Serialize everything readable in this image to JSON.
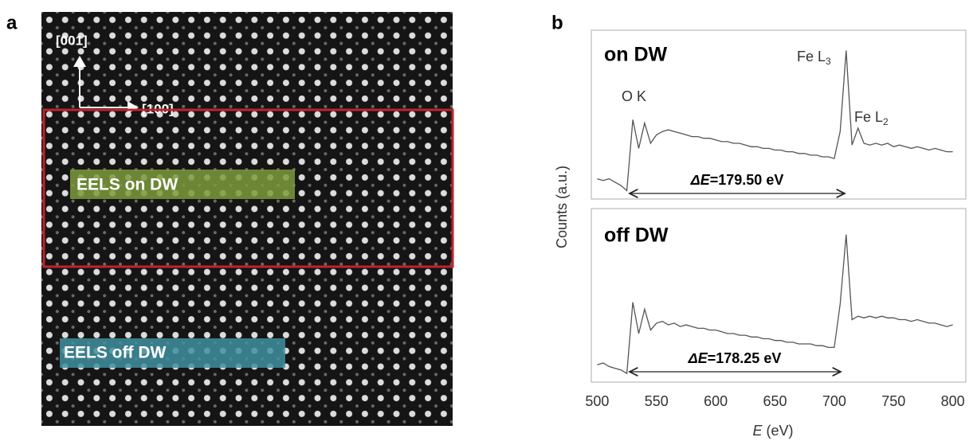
{
  "panel_a": {
    "label": "a",
    "axis_labels": [
      "[001]",
      "[100]"
    ],
    "regions": [
      "EELS on DW",
      "EELS off DW"
    ]
  },
  "panel_b": {
    "label": "b",
    "y_label": "Counts (a.u.)",
    "x_label": {
      "symbol": "E",
      "unit": "(eV)"
    }
  },
  "chart_data": [
    {
      "type": "line",
      "title": "on DW",
      "color": "#555555",
      "x": [
        500,
        505,
        510,
        515,
        520,
        525,
        530,
        535,
        540,
        545,
        550,
        555,
        560,
        565,
        570,
        575,
        580,
        585,
        590,
        595,
        600,
        605,
        610,
        615,
        620,
        625,
        630,
        635,
        640,
        645,
        650,
        655,
        660,
        665,
        670,
        675,
        680,
        685,
        690,
        695,
        700,
        705,
        710,
        715,
        720,
        725,
        730,
        735,
        740,
        745,
        750,
        755,
        760,
        765,
        770,
        775,
        780,
        785,
        790,
        795,
        800
      ],
      "values": [
        12,
        11,
        12,
        10,
        8,
        5,
        47,
        30,
        45,
        33,
        38,
        40,
        41,
        40,
        39,
        38,
        37,
        37,
        36,
        36,
        35,
        34,
        34,
        33,
        33,
        32,
        31,
        31,
        30,
        30,
        29,
        29,
        28,
        28,
        27,
        27,
        26,
        26,
        25,
        25,
        24,
        40,
        88,
        32,
        42,
        33,
        32,
        33,
        32,
        33,
        31,
        32,
        31,
        30,
        31,
        30,
        29,
        30,
        29,
        28,
        28
      ],
      "xlim": [
        495,
        811
      ],
      "ylim": [
        0,
        100
      ],
      "annotations": {
        "ok": "O K",
        "fe_l3": [
          "Fe L",
          "3"
        ],
        "fe_l2": [
          "Fe L",
          "2"
        ],
        "delta": [
          "ΔE",
          "=179.50 eV"
        ]
      }
    },
    {
      "type": "line",
      "title": "off DW",
      "color": "#555555",
      "x": [
        500,
        505,
        510,
        515,
        520,
        525,
        530,
        535,
        540,
        545,
        550,
        555,
        560,
        565,
        570,
        575,
        580,
        585,
        590,
        595,
        600,
        605,
        610,
        615,
        620,
        625,
        630,
        635,
        640,
        645,
        650,
        655,
        660,
        665,
        670,
        675,
        680,
        685,
        690,
        695,
        700,
        705,
        710,
        715,
        720,
        725,
        730,
        735,
        740,
        745,
        750,
        755,
        760,
        765,
        770,
        775,
        780,
        785,
        790,
        795,
        800
      ],
      "values": [
        10,
        11,
        9,
        8,
        7,
        5,
        46,
        28,
        42,
        30,
        34,
        35,
        33,
        34,
        32,
        33,
        32,
        31,
        31,
        30,
        30,
        29,
        28,
        28,
        27,
        27,
        26,
        26,
        25,
        25,
        24,
        24,
        23,
        23,
        22,
        22,
        22,
        21,
        21,
        20,
        20,
        45,
        85,
        36,
        38,
        37,
        38,
        37,
        38,
        37,
        37,
        36,
        36,
        35,
        36,
        35,
        34,
        34,
        33,
        32,
        33
      ],
      "xlim": [
        495,
        811
      ],
      "ylim": [
        0,
        100
      ],
      "xticks": [
        500,
        550,
        600,
        650,
        700,
        750,
        800
      ],
      "annotations": {
        "delta": [
          "ΔE",
          "=178.25 eV"
        ]
      }
    }
  ]
}
